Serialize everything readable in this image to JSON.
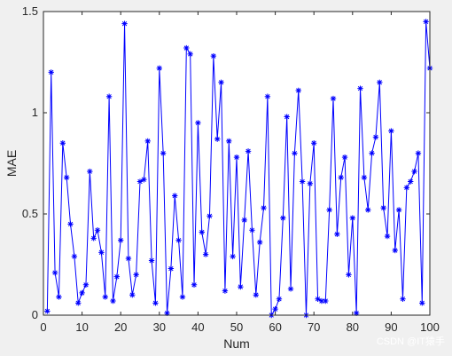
{
  "chart_data": {
    "type": "line",
    "title": "",
    "xlabel": "Num",
    "ylabel": "MAE",
    "xlim": [
      0,
      100
    ],
    "ylim": [
      0,
      1.5
    ],
    "x_ticks": [
      "0",
      "10",
      "20",
      "30",
      "40",
      "50",
      "60",
      "70",
      "80",
      "90",
      "100"
    ],
    "y_ticks": [
      "0",
      "0.5",
      "1",
      "1.5"
    ],
    "grid": false,
    "legend": "none",
    "marker": "*",
    "line_color": "#0000ff",
    "series": [
      {
        "x": [
          1,
          2,
          3,
          4,
          5,
          6,
          7,
          8,
          9,
          10,
          11,
          12,
          13,
          14,
          15,
          16,
          17,
          18,
          19,
          20,
          21,
          22,
          23,
          24,
          25,
          26,
          27,
          28,
          29,
          30,
          31,
          32,
          33,
          34,
          35,
          36,
          37,
          38,
          39,
          40,
          41,
          42,
          43,
          44,
          45,
          46,
          47,
          48,
          49,
          50,
          51,
          52,
          53,
          54,
          55,
          56,
          57,
          58,
          59,
          60,
          61,
          62,
          63,
          64,
          65,
          66,
          67,
          68,
          69,
          70,
          71,
          72,
          73,
          74,
          75,
          76,
          77,
          78,
          79,
          80,
          81,
          82,
          83,
          84,
          85,
          86,
          87,
          88,
          89,
          90,
          91,
          92,
          93,
          94,
          95,
          96,
          97,
          98,
          99,
          100
        ],
        "values": [
          0.02,
          1.2,
          0.21,
          0.09,
          0.85,
          0.68,
          0.45,
          0.29,
          0.06,
          0.11,
          0.15,
          0.71,
          0.38,
          0.42,
          0.31,
          0.09,
          1.08,
          0.07,
          0.19,
          0.37,
          1.44,
          0.28,
          0.1,
          0.2,
          0.66,
          0.67,
          0.86,
          0.27,
          0.06,
          1.22,
          0.8,
          0.01,
          0.23,
          0.59,
          0.37,
          0.09,
          1.32,
          1.29,
          0.15,
          0.95,
          0.41,
          0.3,
          0.49,
          1.28,
          0.87,
          1.15,
          0.12,
          0.86,
          0.29,
          0.78,
          0.14,
          0.47,
          0.81,
          0.42,
          0.1,
          0.36,
          0.53,
          1.08,
          0.0,
          0.03,
          0.08,
          0.48,
          0.98,
          0.13,
          0.8,
          1.11,
          0.66,
          0.0,
          0.65,
          0.85,
          0.08,
          0.07,
          0.07,
          0.52,
          1.07,
          0.4,
          0.68,
          0.78,
          0.2,
          0.48,
          0.01,
          1.12,
          0.68,
          0.52,
          0.8,
          0.88,
          1.15,
          0.53,
          0.39,
          0.91,
          0.32,
          0.52,
          0.08,
          0.63,
          0.66,
          0.71,
          0.8,
          0.06,
          1.45,
          1.22
        ]
      }
    ]
  },
  "watermark": "CSDN @IT猿手"
}
